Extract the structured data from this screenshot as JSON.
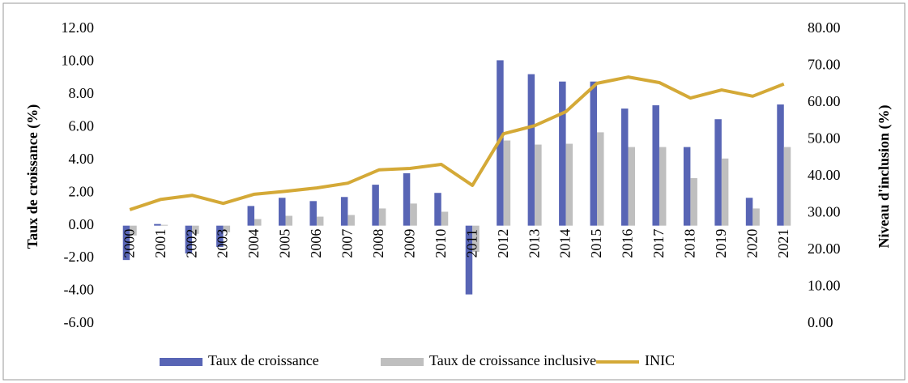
{
  "chart_data": {
    "type": "bar_line",
    "categories": [
      "2000",
      "2001",
      "2002",
      "2003",
      "2004",
      "2005",
      "2006",
      "2007",
      "2008",
      "2009",
      "2010",
      "2011",
      "2012",
      "2013",
      "2014",
      "2015",
      "2016",
      "2017",
      "2018",
      "2019",
      "2020",
      "2021"
    ],
    "series": [
      {
        "name": "Taux de croissance",
        "color": "#5865b5",
        "type": "bar",
        "values": [
          -2.1,
          0.1,
          -1.7,
          -1.3,
          1.2,
          1.7,
          1.5,
          1.75,
          2.5,
          3.2,
          2.0,
          -4.2,
          10.1,
          9.25,
          8.8,
          8.8,
          7.15,
          7.35,
          4.8,
          6.5,
          1.7,
          7.4
        ]
      },
      {
        "name": "Taux de croissance inclusive",
        "color": "#bfbfbf",
        "type": "bar",
        "values": [
          -0.6,
          0.05,
          -0.5,
          -0.4,
          0.4,
          0.6,
          0.55,
          0.65,
          1.05,
          1.35,
          0.85,
          -1.6,
          5.2,
          4.95,
          5.0,
          5.7,
          4.8,
          4.8,
          2.9,
          4.1,
          1.05,
          4.8
        ]
      },
      {
        "name": "INIC",
        "color": "#d4a937",
        "type": "line",
        "axis": "y2",
        "values": [
          31.0,
          33.8,
          34.9,
          32.7,
          35.2,
          36.0,
          36.9,
          38.2,
          41.8,
          42.2,
          43.3,
          37.6,
          51.6,
          53.8,
          57.6,
          65.3,
          67.0,
          65.5,
          61.3,
          63.5,
          61.8,
          65.1
        ]
      }
    ],
    "ylabel": "Taux de croissance (%)",
    "y2label": "Niveau d'inclusion (%)",
    "ylim": [
      -6,
      12
    ],
    "yticks": [
      {
        "value": -6,
        "label": "-6.00"
      },
      {
        "value": -4,
        "label": "-4.00"
      },
      {
        "value": -2,
        "label": "-2.00"
      },
      {
        "value": 0,
        "label": "0.00"
      },
      {
        "value": 2,
        "label": "2.00"
      },
      {
        "value": 4,
        "label": "4.00"
      },
      {
        "value": 6,
        "label": "6.00"
      },
      {
        "value": 8,
        "label": "8.00"
      },
      {
        "value": 10,
        "label": "10.00"
      },
      {
        "value": 12,
        "label": "12.00"
      }
    ],
    "y2lim": [
      0,
      80
    ],
    "y2ticks": [
      {
        "value": 0,
        "label": "0.00"
      },
      {
        "value": 10,
        "label": "10.00"
      },
      {
        "value": 20,
        "label": "20.00"
      },
      {
        "value": 30,
        "label": "30.00"
      },
      {
        "value": 40,
        "label": "40.00"
      },
      {
        "value": 50,
        "label": "50.00"
      },
      {
        "value": 60,
        "label": "60.00"
      },
      {
        "value": 70,
        "label": "70.00"
      },
      {
        "value": 80,
        "label": "80.00"
      }
    ],
    "legend": "bottom"
  }
}
